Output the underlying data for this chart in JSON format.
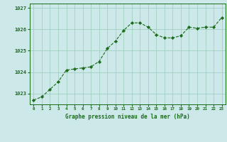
{
  "x": [
    0,
    1,
    2,
    3,
    4,
    5,
    6,
    7,
    8,
    9,
    10,
    11,
    12,
    13,
    14,
    15,
    16,
    17,
    18,
    19,
    20,
    21,
    22,
    23
  ],
  "y": [
    1022.7,
    1022.85,
    1023.2,
    1023.55,
    1024.1,
    1024.15,
    1024.2,
    1024.25,
    1024.5,
    1025.1,
    1025.45,
    1025.95,
    1026.3,
    1026.3,
    1026.1,
    1025.75,
    1025.6,
    1025.6,
    1025.7,
    1026.1,
    1026.05,
    1026.1,
    1026.1,
    1026.55
  ],
  "ylim": [
    1022.5,
    1027.2
  ],
  "yticks": [
    1023,
    1024,
    1025,
    1026,
    1027
  ],
  "xticks": [
    0,
    1,
    2,
    3,
    4,
    5,
    6,
    7,
    8,
    9,
    10,
    11,
    12,
    13,
    14,
    15,
    16,
    17,
    18,
    19,
    20,
    21,
    22,
    23
  ],
  "line_color": "#1a6b1a",
  "marker_color": "#1a6b1a",
  "bg_color": "#cce8e8",
  "grid_color": "#99ccbb",
  "xlabel": "Graphe pression niveau de la mer (hPa)",
  "tick_color": "#1a6b1a",
  "border_color": "#1a6b1a"
}
